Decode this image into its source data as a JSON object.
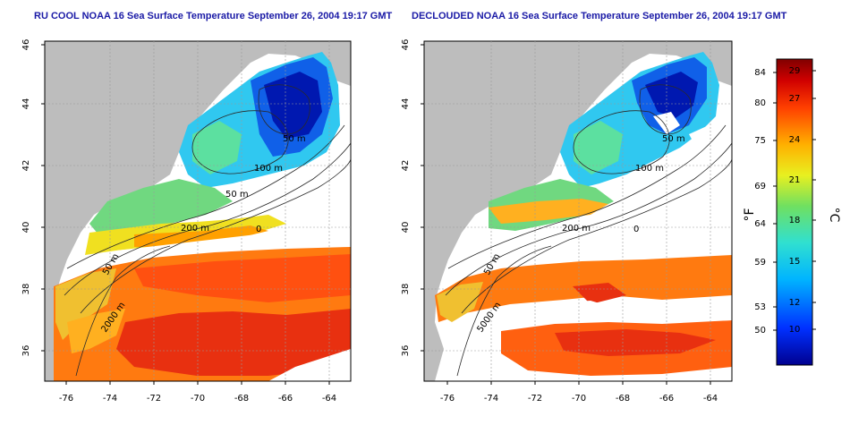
{
  "titles": {
    "left": "RU COOL NOAA 16 Sea Surface Temperature September 26, 2004 19:17 GMT",
    "right": "DECLOUDED NOAA 16 Sea Surface Temperature September 26, 2004 19:17 GMT"
  },
  "axes": {
    "lat_ticks": [
      "46",
      "44",
      "42",
      "40",
      "38",
      "36"
    ],
    "lon_ticks": [
      "-76",
      "-74",
      "-72",
      "-70",
      "-68",
      "-66",
      "-64"
    ]
  },
  "contour_labels": {
    "left": [
      "50 m",
      "100 m",
      "50 m",
      "200 m",
      "0",
      "50 m",
      "2000 m"
    ],
    "right": [
      "50 m",
      "100 m",
      "200 m",
      "0",
      "50 m",
      "5000 m"
    ]
  },
  "colorbar": {
    "f_label": "°F",
    "c_label": "°C",
    "f_ticks": [
      "84",
      "80",
      "75",
      "69",
      "64",
      "59",
      "53",
      "50"
    ],
    "c_ticks": [
      "29",
      "27",
      "24",
      "21",
      "18",
      "15",
      "12",
      "10"
    ]
  },
  "colors": {
    "land": "#bdbdbd",
    "title": "#1a1aa6",
    "cold": "#00008f",
    "warm": "#8b0000"
  }
}
